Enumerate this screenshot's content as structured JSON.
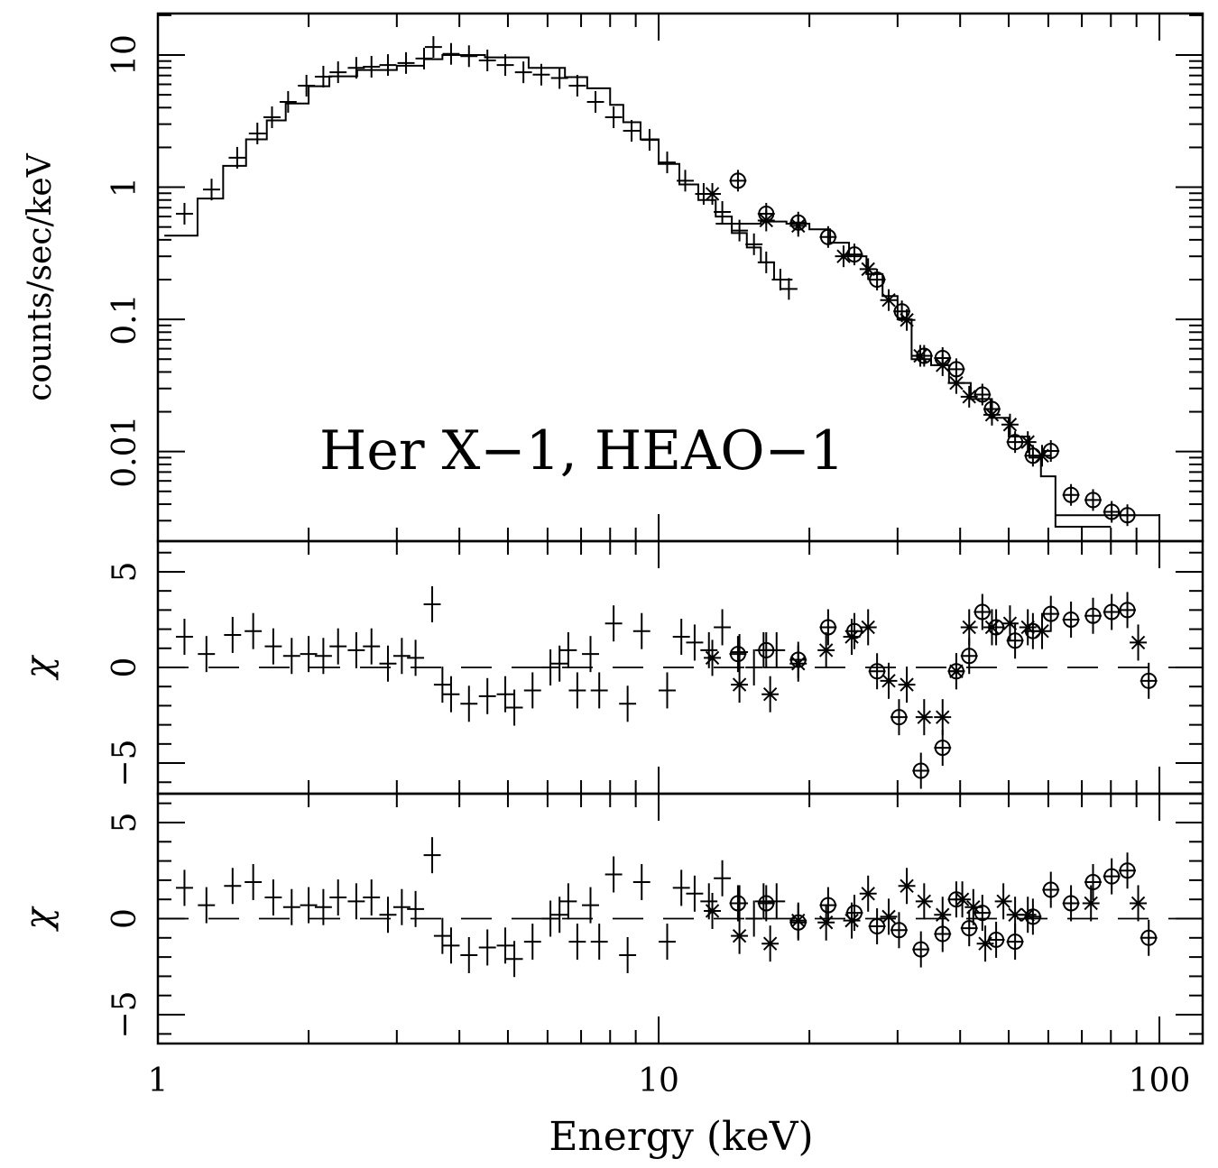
{
  "chart_data": [
    {
      "panel": "spectrum",
      "type": "scatter",
      "annotation": "Her X−1, HEAO−1",
      "ylabel": "counts/sec/keV",
      "xscale": "log",
      "yscale": "log",
      "xlim": [
        1,
        122
      ],
      "ylim": [
        0.0021,
        20.6
      ],
      "yticks": [
        {
          "v": 0.01,
          "label": "0.01"
        },
        {
          "v": 0.1,
          "label": "0.1"
        },
        {
          "v": 1,
          "label": "1"
        },
        {
          "v": 10,
          "label": "10"
        }
      ],
      "series": [
        {
          "marker": "plus",
          "x": [
            1.13,
            1.28,
            1.44,
            1.58,
            1.69,
            1.82,
            1.98,
            2.14,
            2.29,
            2.49,
            2.67,
            2.88,
            3.13,
            3.4,
            3.55,
            3.85,
            4.18,
            4.55,
            4.94,
            5.37,
            5.83,
            6.34,
            6.88,
            7.48,
            8.13,
            8.83,
            9.59,
            10.4,
            11.3,
            12.3,
            13.4,
            14.5,
            15.5,
            16.4,
            17.5,
            18.2
          ],
          "y": [
            0.63,
            0.96,
            1.67,
            2.55,
            3.38,
            4.42,
            5.86,
            6.86,
            7.41,
            8.0,
            8.15,
            8.4,
            8.7,
            9.4,
            11.5,
            10.2,
            9.8,
            9.1,
            8.4,
            7.4,
            7.1,
            6.7,
            5.86,
            4.42,
            3.38,
            2.67,
            2.28,
            1.54,
            1.12,
            0.89,
            0.65,
            0.47,
            0.37,
            0.27,
            0.2,
            0.17
          ]
        },
        {
          "marker": "star",
          "x": [
            12.8,
            16.4,
            19.0,
            23.4,
            26.2,
            28.8,
            31.3,
            33.3,
            36.9,
            39.3,
            41.7,
            46.3,
            50.3,
            54.6,
            58.3
          ],
          "y": [
            0.89,
            0.56,
            0.51,
            0.3,
            0.24,
            0.14,
            0.099,
            0.053,
            0.045,
            0.033,
            0.026,
            0.019,
            0.016,
            0.0118,
            0.0093
          ]
        },
        {
          "marker": "circle",
          "x": [
            14.4,
            16.4,
            19.0,
            21.8,
            24.6,
            27.3,
            30.6,
            33.9,
            36.9,
            39.3,
            44.3,
            46.3,
            51.5,
            55.9,
            60.7,
            66.6,
            73.7,
            80.3,
            86.3
          ],
          "y": [
            1.12,
            0.63,
            0.54,
            0.42,
            0.31,
            0.2,
            0.115,
            0.053,
            0.051,
            0.042,
            0.027,
            0.021,
            0.0118,
            0.0093,
            0.0101,
            0.0047,
            0.0043,
            0.0035,
            0.0033
          ]
        }
      ],
      "models": [
        {
          "edges": [
            1.03,
            1.2,
            1.35,
            1.5,
            1.65,
            1.8,
            2.0,
            2.2,
            2.5,
            3.0,
            3.4,
            3.7,
            4.5,
            5.5,
            6.5,
            7.2,
            8.0,
            8.5,
            9.2,
            10,
            11,
            12,
            13,
            14,
            15,
            16,
            17,
            18.5
          ],
          "values": [
            0.43,
            0.82,
            1.45,
            2.3,
            3.2,
            4.3,
            5.8,
            6.9,
            7.7,
            8.3,
            9.3,
            10,
            9.6,
            8.0,
            6.8,
            5.6,
            4.2,
            3.1,
            2.3,
            1.5,
            1.05,
            0.8,
            0.6,
            0.45,
            0.35,
            0.27,
            0.2
          ]
        },
        {
          "edges": [
            13,
            14,
            16,
            18,
            20,
            22,
            24,
            26,
            28,
            30,
            32,
            35,
            38,
            42,
            46,
            50,
            55,
            58,
            62,
            70,
            80
          ],
          "values": [
            0.53,
            0.53,
            0.55,
            0.53,
            0.48,
            0.38,
            0.3,
            0.22,
            0.15,
            0.1,
            0.05,
            0.045,
            0.033,
            0.025,
            0.018,
            0.013,
            0.009,
            0.0065,
            0.0027,
            0.0027
          ]
        },
        {
          "edges": [
            62,
            75,
            100
          ],
          "values": [
            0.0033,
            0.0033
          ]
        }
      ]
    },
    {
      "panel": "residuals-1",
      "type": "scatter",
      "ylabel": "χ",
      "xscale": "log",
      "xlim": [
        1,
        122
      ],
      "ylim": [
        -6.6,
        6.6
      ],
      "yticks": [
        {
          "v": -5,
          "label": "−5"
        },
        {
          "v": 0,
          "label": "0"
        },
        {
          "v": 5,
          "label": "5"
        }
      ],
      "series": [
        {
          "marker": "plus",
          "x": [
            1.13,
            1.25,
            1.41,
            1.55,
            1.7,
            1.85,
            2.0,
            2.14,
            2.29,
            2.49,
            2.67,
            2.88,
            3.07,
            3.27,
            3.53,
            3.7,
            3.85,
            4.18,
            4.55,
            4.94,
            5.15,
            5.6,
            6.08,
            6.34,
            6.6,
            6.88,
            7.31,
            7.61,
            8.13,
            8.67,
            9.25,
            10.4,
            11.1,
            11.8,
            12.6,
            13.4,
            14.5,
            15.5,
            16.2,
            17.2
          ],
          "y": [
            1.6,
            0.7,
            1.7,
            1.9,
            1.1,
            0.6,
            0.7,
            0.6,
            1.1,
            0.9,
            1.1,
            0.2,
            0.6,
            0.5,
            3.3,
            -0.9,
            -1.4,
            -1.9,
            -1.5,
            -1.4,
            -2.1,
            -1.2,
            0,
            0.2,
            0.9,
            -1.2,
            0.7,
            -1.2,
            2.3,
            -1.9,
            1.9,
            -1.2,
            1.6,
            1.3,
            0.9,
            2.1,
            0.8,
            0,
            0.9,
            0.9
          ]
        },
        {
          "marker": "star",
          "x": [
            12.8,
            14.5,
            16.7,
            19.0,
            21.6,
            24.3,
            26.2,
            28.8,
            31.3,
            33.9,
            36.9,
            39.3,
            41.7,
            46.3,
            50.3,
            54.6,
            58.3,
            90.7
          ],
          "y": [
            0.5,
            -0.9,
            -1.4,
            0.2,
            0.9,
            1.6,
            2.1,
            -0.7,
            -0.9,
            -2.6,
            -2.6,
            -0.2,
            2.1,
            2.1,
            2.3,
            2.1,
            1.9,
            1.3
          ]
        },
        {
          "marker": "circle",
          "x": [
            14.4,
            16.4,
            19.0,
            21.8,
            24.6,
            27.3,
            30.2,
            33.4,
            36.9,
            39.3,
            41.7,
            44.3,
            47.2,
            51.5,
            55.9,
            60.7,
            66.6,
            73.7,
            80.3,
            86.3,
            95.2
          ],
          "y": [
            0.7,
            0.9,
            0.4,
            2.1,
            1.9,
            -0.2,
            -2.6,
            -5.4,
            -4.2,
            -0.2,
            0.6,
            2.9,
            2.1,
            1.4,
            1.9,
            2.8,
            2.5,
            2.7,
            2.9,
            3.0,
            -0.7
          ]
        }
      ]
    },
    {
      "panel": "residuals-2",
      "type": "scatter",
      "ylabel": "χ",
      "xlabel": "Energy (keV)",
      "xscale": "log",
      "xlim": [
        1,
        122
      ],
      "ylim": [
        -6.5,
        6.5
      ],
      "yticks": [
        {
          "v": -5,
          "label": "−5"
        },
        {
          "v": 0,
          "label": "0"
        },
        {
          "v": 5,
          "label": "5"
        }
      ],
      "xticks": [
        {
          "v": 1,
          "label": "1"
        },
        {
          "v": 10,
          "label": "10"
        },
        {
          "v": 100,
          "label": "100"
        }
      ],
      "series": [
        {
          "marker": "plus",
          "x": [
            1.13,
            1.25,
            1.41,
            1.55,
            1.7,
            1.85,
            2.0,
            2.14,
            2.29,
            2.49,
            2.67,
            2.88,
            3.07,
            3.27,
            3.53,
            3.7,
            3.85,
            4.18,
            4.55,
            4.94,
            5.15,
            5.6,
            6.08,
            6.34,
            6.6,
            6.88,
            7.31,
            7.61,
            8.13,
            8.67,
            9.25,
            10.4,
            11.1,
            11.8,
            12.6,
            13.4,
            14.5,
            15.5,
            16.2,
            17.2
          ],
          "y": [
            1.6,
            0.7,
            1.7,
            1.9,
            1.1,
            0.6,
            0.7,
            0.6,
            1.1,
            0.9,
            1.1,
            0.2,
            0.6,
            0.5,
            3.3,
            -0.9,
            -1.4,
            -1.9,
            -1.5,
            -1.4,
            -2.1,
            -1.2,
            0,
            0.2,
            0.9,
            -1.2,
            0.7,
            -1.2,
            2.3,
            -1.9,
            1.9,
            -1.2,
            1.6,
            1.3,
            0.9,
            2.1,
            0.8,
            0,
            0.9,
            0.9
          ]
        },
        {
          "marker": "star",
          "x": [
            12.8,
            14.5,
            16.7,
            19.0,
            21.6,
            24.3,
            26.2,
            28.8,
            31.3,
            33.9,
            36.9,
            40.4,
            42.5,
            44.9,
            48.8,
            51.5,
            54.6,
            73.0,
            90.7
          ],
          "y": [
            0.4,
            -0.9,
            -1.3,
            -0.1,
            -0.2,
            -0.1,
            1.3,
            0.1,
            1.7,
            0.9,
            0.2,
            1.0,
            0.6,
            -1.3,
            0.9,
            0.2,
            0.2,
            0.8,
            0.8
          ]
        },
        {
          "marker": "circle",
          "x": [
            14.4,
            16.4,
            19.0,
            21.8,
            24.6,
            27.3,
            30.2,
            33.4,
            36.9,
            39.3,
            41.7,
            44.3,
            47.2,
            51.5,
            55.9,
            60.7,
            66.6,
            73.7,
            80.3,
            86.3,
            95.2
          ],
          "y": [
            0.8,
            0.8,
            -0.2,
            0.7,
            0.3,
            -0.4,
            -0.6,
            -1.6,
            -0.8,
            1.0,
            -0.5,
            0.3,
            -1.1,
            -1.2,
            0.1,
            1.5,
            0.8,
            1.9,
            2.2,
            2.5,
            -1.0
          ]
        }
      ]
    }
  ]
}
